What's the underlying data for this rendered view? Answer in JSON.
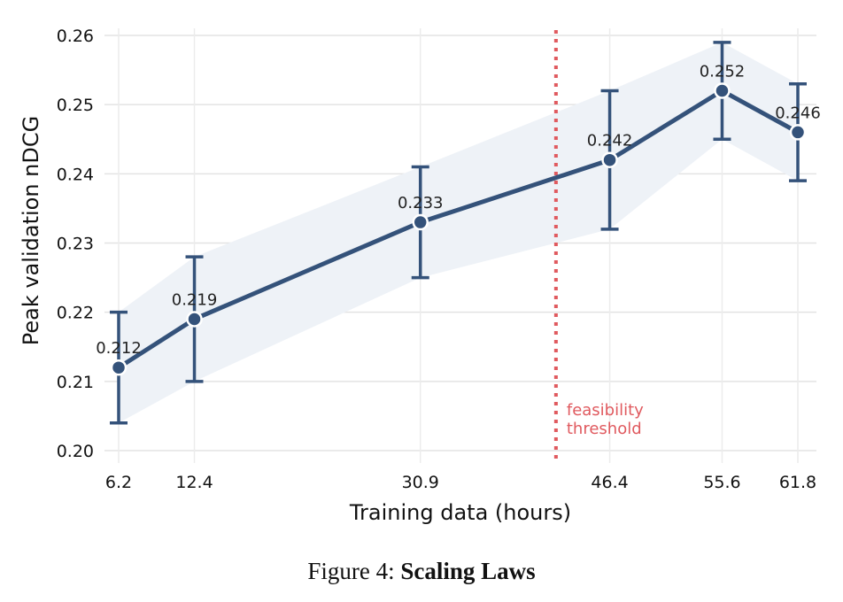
{
  "chart_data": {
    "type": "line",
    "x": [
      6.2,
      12.4,
      30.9,
      46.4,
      55.6,
      61.8
    ],
    "x_tick_labels": [
      "6.2",
      "12.4",
      "30.9",
      "46.4",
      "55.6",
      "61.8"
    ],
    "series": [
      {
        "values": [
          0.212,
          0.219,
          0.233,
          0.242,
          0.252,
          0.246
        ],
        "error_low": [
          0.204,
          0.21,
          0.225,
          0.232,
          0.245,
          0.239
        ],
        "error_high": [
          0.22,
          0.228,
          0.241,
          0.252,
          0.259,
          0.253
        ],
        "band_low": [
          0.204,
          0.21,
          0.225,
          0.232,
          0.245,
          0.239
        ],
        "band_high": [
          0.22,
          0.228,
          0.241,
          0.252,
          0.259,
          0.253
        ],
        "data_labels": [
          "0.212",
          "0.219",
          "0.233",
          "0.242",
          "0.252",
          "0.246"
        ],
        "color": "#34527a",
        "band_color": "#eef2f7"
      }
    ],
    "xlabel": "Training data (hours)",
    "ylabel": "Peak validation nDCG",
    "ylim": [
      0.2,
      0.26
    ],
    "y_ticks": [
      0.2,
      0.21,
      0.22,
      0.23,
      0.24,
      0.25,
      0.26
    ],
    "y_tick_labels": [
      "0.20",
      "0.21",
      "0.22",
      "0.23",
      "0.24",
      "0.25",
      "0.26"
    ],
    "grid": true,
    "threshold": {
      "x": 42.0,
      "label_lines": [
        "feasibility",
        "threshold"
      ],
      "color": "#e05a5f"
    }
  },
  "caption": {
    "prefix": "Figure 4: ",
    "title": "Scaling Laws"
  }
}
